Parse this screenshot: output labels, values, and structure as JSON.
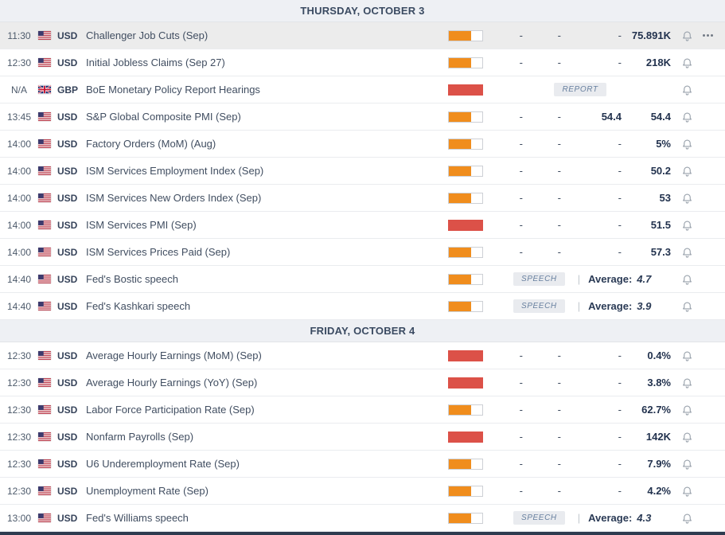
{
  "colors": {
    "impact_medium": "#f08d1d",
    "impact_high": "#dc5148",
    "section_background": "#eef0f4",
    "highlighted_row_background": "#ececec",
    "value_text": "#22324e"
  },
  "labels": {
    "average": "Average:",
    "separator": "|"
  },
  "sections": [
    {
      "title": "THURSDAY, OCTOBER 3",
      "rows": [
        {
          "time": "11:30",
          "country": "US",
          "currency": "USD",
          "event": "Challenger Job Cuts (Sep)",
          "impact": "medium",
          "type": "data",
          "actual": "-",
          "deviation": "-",
          "consensus": "-",
          "previous": "75.891K",
          "highlighted": true,
          "menu": true
        },
        {
          "time": "12:30",
          "country": "US",
          "currency": "USD",
          "event": "Initial Jobless Claims (Sep 27)",
          "impact": "medium",
          "type": "data",
          "actual": "-",
          "deviation": "-",
          "consensus": "-",
          "previous": "218K"
        },
        {
          "time": "N/A",
          "country": "GB",
          "currency": "GBP",
          "event": "BoE Monetary Policy Report Hearings",
          "impact": "high",
          "type": "report",
          "badge": "REPORT"
        },
        {
          "time": "13:45",
          "country": "US",
          "currency": "USD",
          "event": "S&P Global Composite PMI (Sep)",
          "impact": "medium",
          "type": "data",
          "actual": "-",
          "deviation": "-",
          "consensus": "54.4",
          "previous": "54.4"
        },
        {
          "time": "14:00",
          "country": "US",
          "currency": "USD",
          "event": "Factory Orders (MoM) (Aug)",
          "impact": "medium",
          "type": "data",
          "actual": "-",
          "deviation": "-",
          "consensus": "-",
          "previous": "5%"
        },
        {
          "time": "14:00",
          "country": "US",
          "currency": "USD",
          "event": "ISM Services Employment Index (Sep)",
          "impact": "medium",
          "type": "data",
          "actual": "-",
          "deviation": "-",
          "consensus": "-",
          "previous": "50.2"
        },
        {
          "time": "14:00",
          "country": "US",
          "currency": "USD",
          "event": "ISM Services New Orders Index (Sep)",
          "impact": "medium",
          "type": "data",
          "actual": "-",
          "deviation": "-",
          "consensus": "-",
          "previous": "53"
        },
        {
          "time": "14:00",
          "country": "US",
          "currency": "USD",
          "event": "ISM Services PMI (Sep)",
          "impact": "high",
          "type": "data",
          "actual": "-",
          "deviation": "-",
          "consensus": "-",
          "previous": "51.5"
        },
        {
          "time": "14:00",
          "country": "US",
          "currency": "USD",
          "event": "ISM Services Prices Paid (Sep)",
          "impact": "medium",
          "type": "data",
          "actual": "-",
          "deviation": "-",
          "consensus": "-",
          "previous": "57.3"
        },
        {
          "time": "14:40",
          "country": "US",
          "currency": "USD",
          "event": "Fed's Bostic speech",
          "impact": "medium",
          "type": "speech",
          "badge": "SPEECH",
          "average": "4.7"
        },
        {
          "time": "14:40",
          "country": "US",
          "currency": "USD",
          "event": "Fed's Kashkari speech",
          "impact": "medium",
          "type": "speech",
          "badge": "SPEECH",
          "average": "3.9"
        }
      ]
    },
    {
      "title": "FRIDAY, OCTOBER 4",
      "rows": [
        {
          "time": "12:30",
          "country": "US",
          "currency": "USD",
          "event": "Average Hourly Earnings (MoM) (Sep)",
          "impact": "high",
          "type": "data",
          "actual": "-",
          "deviation": "-",
          "consensus": "-",
          "previous": "0.4%"
        },
        {
          "time": "12:30",
          "country": "US",
          "currency": "USD",
          "event": "Average Hourly Earnings (YoY) (Sep)",
          "impact": "high",
          "type": "data",
          "actual": "-",
          "deviation": "-",
          "consensus": "-",
          "previous": "3.8%"
        },
        {
          "time": "12:30",
          "country": "US",
          "currency": "USD",
          "event": "Labor Force Participation Rate (Sep)",
          "impact": "medium",
          "type": "data",
          "actual": "-",
          "deviation": "-",
          "consensus": "-",
          "previous": "62.7%"
        },
        {
          "time": "12:30",
          "country": "US",
          "currency": "USD",
          "event": "Nonfarm Payrolls (Sep)",
          "impact": "high",
          "type": "data",
          "actual": "-",
          "deviation": "-",
          "consensus": "-",
          "previous": "142K"
        },
        {
          "time": "12:30",
          "country": "US",
          "currency": "USD",
          "event": "U6 Underemployment Rate (Sep)",
          "impact": "medium",
          "type": "data",
          "actual": "-",
          "deviation": "-",
          "consensus": "-",
          "previous": "7.9%"
        },
        {
          "time": "12:30",
          "country": "US",
          "currency": "USD",
          "event": "Unemployment Rate (Sep)",
          "impact": "medium",
          "type": "data",
          "actual": "-",
          "deviation": "-",
          "consensus": "-",
          "previous": "4.2%"
        },
        {
          "time": "13:00",
          "country": "US",
          "currency": "USD",
          "event": "Fed's Williams speech",
          "impact": "medium",
          "type": "speech",
          "badge": "SPEECH",
          "average": "4.3"
        }
      ]
    }
  ]
}
